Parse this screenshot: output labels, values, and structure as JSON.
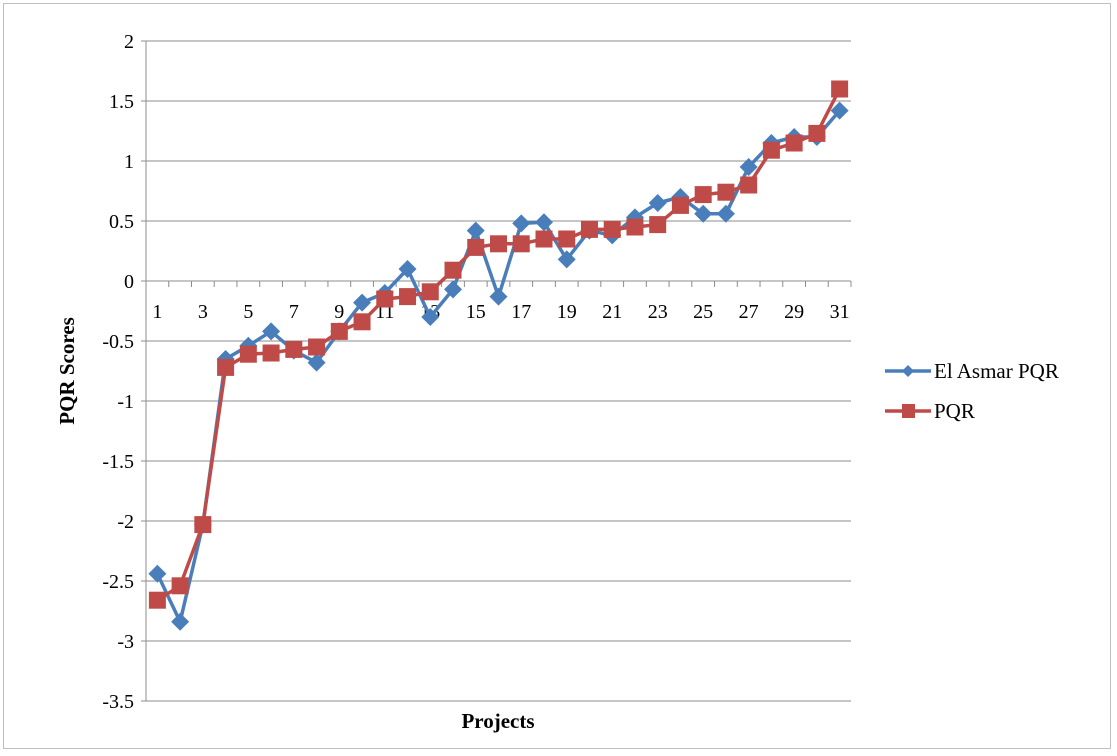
{
  "chart_data": {
    "type": "line",
    "title": "",
    "xlabel": "Projects",
    "ylabel": "PQR Scores",
    "ylim": [
      -3.5,
      2
    ],
    "yticks": [
      2,
      1.5,
      1,
      0.5,
      0,
      -0.5,
      -1,
      -1.5,
      -2,
      -2.5,
      -3,
      -3.5
    ],
    "ytick_labels": [
      "2",
      "1.5",
      "1",
      "0.5",
      "0",
      "-0.5",
      "-1",
      "-1.5",
      "-2",
      "-2.5",
      "-3",
      "-3.5"
    ],
    "x": [
      1,
      2,
      3,
      4,
      5,
      6,
      7,
      8,
      9,
      10,
      11,
      12,
      13,
      14,
      15,
      16,
      17,
      18,
      19,
      20,
      21,
      22,
      23,
      24,
      25,
      26,
      27,
      28,
      29,
      30,
      31
    ],
    "xtick_labels": [
      "1",
      "3",
      "5",
      "7",
      "9",
      "11",
      "13",
      "15",
      "17",
      "19",
      "21",
      "23",
      "25",
      "27",
      "29",
      "31"
    ],
    "grid": true,
    "legend_position": "right",
    "series": [
      {
        "name": "El Asmar PQR",
        "color": "#4a7ebb",
        "marker": "diamond",
        "values": [
          -2.44,
          -2.84,
          -2.03,
          -0.65,
          -0.54,
          -0.42,
          -0.58,
          -0.68,
          -0.42,
          -0.18,
          -0.1,
          0.1,
          -0.3,
          -0.07,
          0.42,
          -0.13,
          0.48,
          0.49,
          0.18,
          0.42,
          0.38,
          0.53,
          0.65,
          0.7,
          0.56,
          0.56,
          0.95,
          1.15,
          1.2,
          1.2,
          1.42
        ]
      },
      {
        "name": "PQR",
        "color": "#be4b48",
        "marker": "square",
        "values": [
          -2.66,
          -2.54,
          -2.03,
          -0.72,
          -0.61,
          -0.6,
          -0.57,
          -0.55,
          -0.42,
          -0.34,
          -0.15,
          -0.13,
          -0.09,
          0.09,
          0.28,
          0.31,
          0.31,
          0.35,
          0.35,
          0.43,
          0.43,
          0.45,
          0.47,
          0.63,
          0.72,
          0.74,
          0.8,
          1.09,
          1.15,
          1.23,
          1.6
        ]
      }
    ]
  }
}
